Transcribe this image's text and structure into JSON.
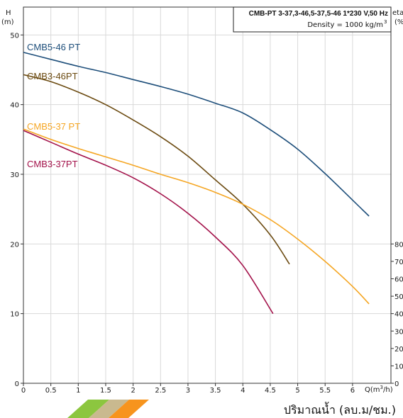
{
  "chart_data": {
    "type": "line",
    "title": "CMB-PT 3-37,3-46,5-37,5-46  1*230 V,50 Hz",
    "subtitle": "Density = 1000 kg/m",
    "subtitle_sup": "3",
    "ylabel": "H",
    "ylabel_unit": "(m)",
    "xlabel": "Q(m",
    "xlabel_sup": "3",
    "xlabel_tail": "/h)",
    "x_unit_text": "ปริมาณน้ำ (ลบ.ม/ชม.)",
    "eta_label": "eta",
    "eta_unit": "(%",
    "xlim": [
      0,
      6.7
    ],
    "ylim": [
      0,
      54
    ],
    "x_ticks": [
      "0",
      "0.5",
      "1",
      "1.5",
      "2",
      "2.5",
      "3",
      "3.5",
      "4",
      "4.5",
      "5",
      "5.5",
      "6"
    ],
    "y_ticks": [
      "0",
      "10",
      "20",
      "30",
      "40",
      "50"
    ],
    "eta_ticks": [
      "0",
      "10",
      "20",
      "30",
      "40",
      "50",
      "60",
      "70",
      "80"
    ],
    "grid": true,
    "series": [
      {
        "name": "CMB5-46 PT",
        "color": "#1d4e7a",
        "points": [
          [
            0,
            47.5
          ],
          [
            0.5,
            46.5
          ],
          [
            1,
            45.5
          ],
          [
            1.5,
            44.6
          ],
          [
            2,
            43.6
          ],
          [
            2.5,
            42.6
          ],
          [
            3,
            41.5
          ],
          [
            3.5,
            40.2
          ],
          [
            4,
            38.8
          ],
          [
            4.5,
            36.4
          ],
          [
            5,
            33.6
          ],
          [
            5.5,
            30.1
          ],
          [
            6,
            26.3
          ],
          [
            6.3,
            24.0
          ]
        ]
      },
      {
        "name": "CMB3-46PT",
        "color": "#6b4a10",
        "points": [
          [
            0,
            44.3
          ],
          [
            0.5,
            43.3
          ],
          [
            1,
            41.8
          ],
          [
            1.5,
            40.0
          ],
          [
            2,
            37.8
          ],
          [
            2.5,
            35.4
          ],
          [
            3,
            32.6
          ],
          [
            3.5,
            29.2
          ],
          [
            4,
            25.7
          ],
          [
            4.5,
            21.3
          ],
          [
            4.85,
            17.1
          ]
        ]
      },
      {
        "name": "CMB5-37 PT",
        "color": "#f5a623",
        "points": [
          [
            0,
            36.5
          ],
          [
            0.5,
            35.0
          ],
          [
            1,
            33.7
          ],
          [
            1.5,
            32.5
          ],
          [
            2,
            31.3
          ],
          [
            2.5,
            30.0
          ],
          [
            3,
            28.8
          ],
          [
            3.5,
            27.4
          ],
          [
            4,
            25.7
          ],
          [
            4.5,
            23.5
          ],
          [
            5,
            20.7
          ],
          [
            5.5,
            17.5
          ],
          [
            6,
            13.9
          ],
          [
            6.3,
            11.4
          ]
        ]
      },
      {
        "name": "CMB3-37PT",
        "color": "#a3124a",
        "points": [
          [
            0,
            36.3
          ],
          [
            0.5,
            34.6
          ],
          [
            1,
            32.9
          ],
          [
            1.5,
            31.3
          ],
          [
            2,
            29.5
          ],
          [
            2.5,
            27.2
          ],
          [
            3,
            24.4
          ],
          [
            3.5,
            21.0
          ],
          [
            4,
            16.9
          ],
          [
            4.55,
            10.0
          ]
        ]
      }
    ]
  },
  "logo": {
    "colors": [
      "#8cc63f",
      "#c9b98f",
      "#f7941d"
    ]
  }
}
